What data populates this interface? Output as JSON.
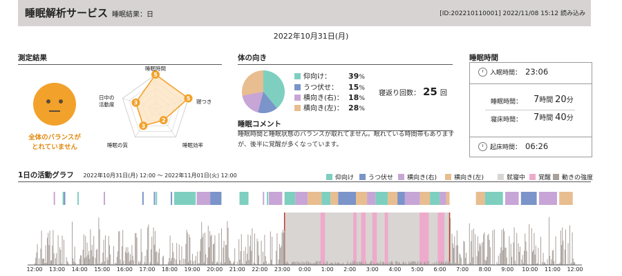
{
  "header": {
    "title": "睡眠解析サービス",
    "subtitle": "睡眠結果：日",
    "meta": "[ID:202210110001]  2022/11/08 15:12 読み込み"
  },
  "date": "2022年10月31日(月)",
  "measurement": {
    "section_title": "測定結果",
    "face_caption_line1": "全体のバランスが",
    "face_caption_line2": "とれていません",
    "radar": {
      "labels": [
        "睡眠時間",
        "寝つき",
        "睡眠効率",
        "睡眠の質",
        "日中の\n活動度"
      ],
      "values": [
        5,
        5,
        2,
        3,
        3
      ],
      "max": 5
    }
  },
  "posture": {
    "section_title": "体の向き",
    "items": [
      {
        "label": "仰向け：",
        "value": "39",
        "unit": "%",
        "color": "#7ecfc0",
        "pct": 39
      },
      {
        "label": "うつ伏せ：",
        "value": "15",
        "unit": "%",
        "color": "#7b94c9",
        "pct": 15
      },
      {
        "label": "横向き(右)：",
        "value": "18",
        "unit": "%",
        "color": "#c7a5d6",
        "pct": 18
      },
      {
        "label": "横向き(左)：",
        "value": "28",
        "unit": "%",
        "color": "#e8bd90",
        "pct": 28
      }
    ],
    "rolls_label": "寝返り回数：",
    "rolls_value": "25",
    "rolls_unit": "回"
  },
  "comment": {
    "title": "睡眠コメント",
    "text": "睡眠時間と睡眠状態のバランスが取れてません。眠れている時間帯もありますが、後半に覚醒が多くなっています。"
  },
  "sleep_time": {
    "section_title": "睡眠時間",
    "bed_label": "入眠時間：",
    "bed_value": "23:06",
    "sleep_label": "睡眠時間：",
    "sleep_h": "7",
    "sleep_m": "20",
    "sleep_h_unit": "時間",
    "sleep_m_unit": "分",
    "inbed_label": "寝床時間：",
    "inbed_h": "7",
    "inbed_m": "40",
    "inbed_h_unit": "時間",
    "inbed_m_unit": "分",
    "wake_label": "起床時間：",
    "wake_value": "06:26"
  },
  "activity": {
    "section_title": "1日の活動グラフ",
    "range": "2022年10月31日(月) 12:00 ～ 2022年11月01日(火) 12:00",
    "legend": [
      {
        "label": "仰向け",
        "color": "#7ecfc0"
      },
      {
        "label": "うつ伏せ",
        "color": "#7b94c9"
      },
      {
        "label": "横向き(右)",
        "color": "#c7a5d6"
      },
      {
        "label": "横向き(左)",
        "color": "#e8bd90"
      },
      {
        "label": "就寝中",
        "color": "#d9d5d3"
      },
      {
        "label": "覚醒",
        "color": "#eeaacb"
      },
      {
        "label": "動きの強度",
        "color": "#a8a09b"
      }
    ],
    "xticks": [
      "12:00",
      "13:00",
      "14:00",
      "15:00",
      "16:00",
      "17:00",
      "18:00",
      "19:00",
      "20:00",
      "21:00",
      "22:00",
      "23:00",
      "0:00",
      "1:00",
      "2:00",
      "3:00",
      "4:00",
      "5:00",
      "6:00",
      "7:00",
      "8:00",
      "9:00",
      "10:00",
      "11:00",
      "12:00"
    ],
    "bed_hour": 23.1,
    "wake_hour": 6.43,
    "awake_segments": [
      [
        0.7,
        0.9
      ],
      [
        2.15,
        2.3
      ],
      [
        2.5,
        2.7
      ],
      [
        3.0,
        3.2
      ],
      [
        3.55,
        3.7
      ],
      [
        5.1,
        5.5
      ],
      [
        5.9,
        6.2
      ]
    ]
  }
}
